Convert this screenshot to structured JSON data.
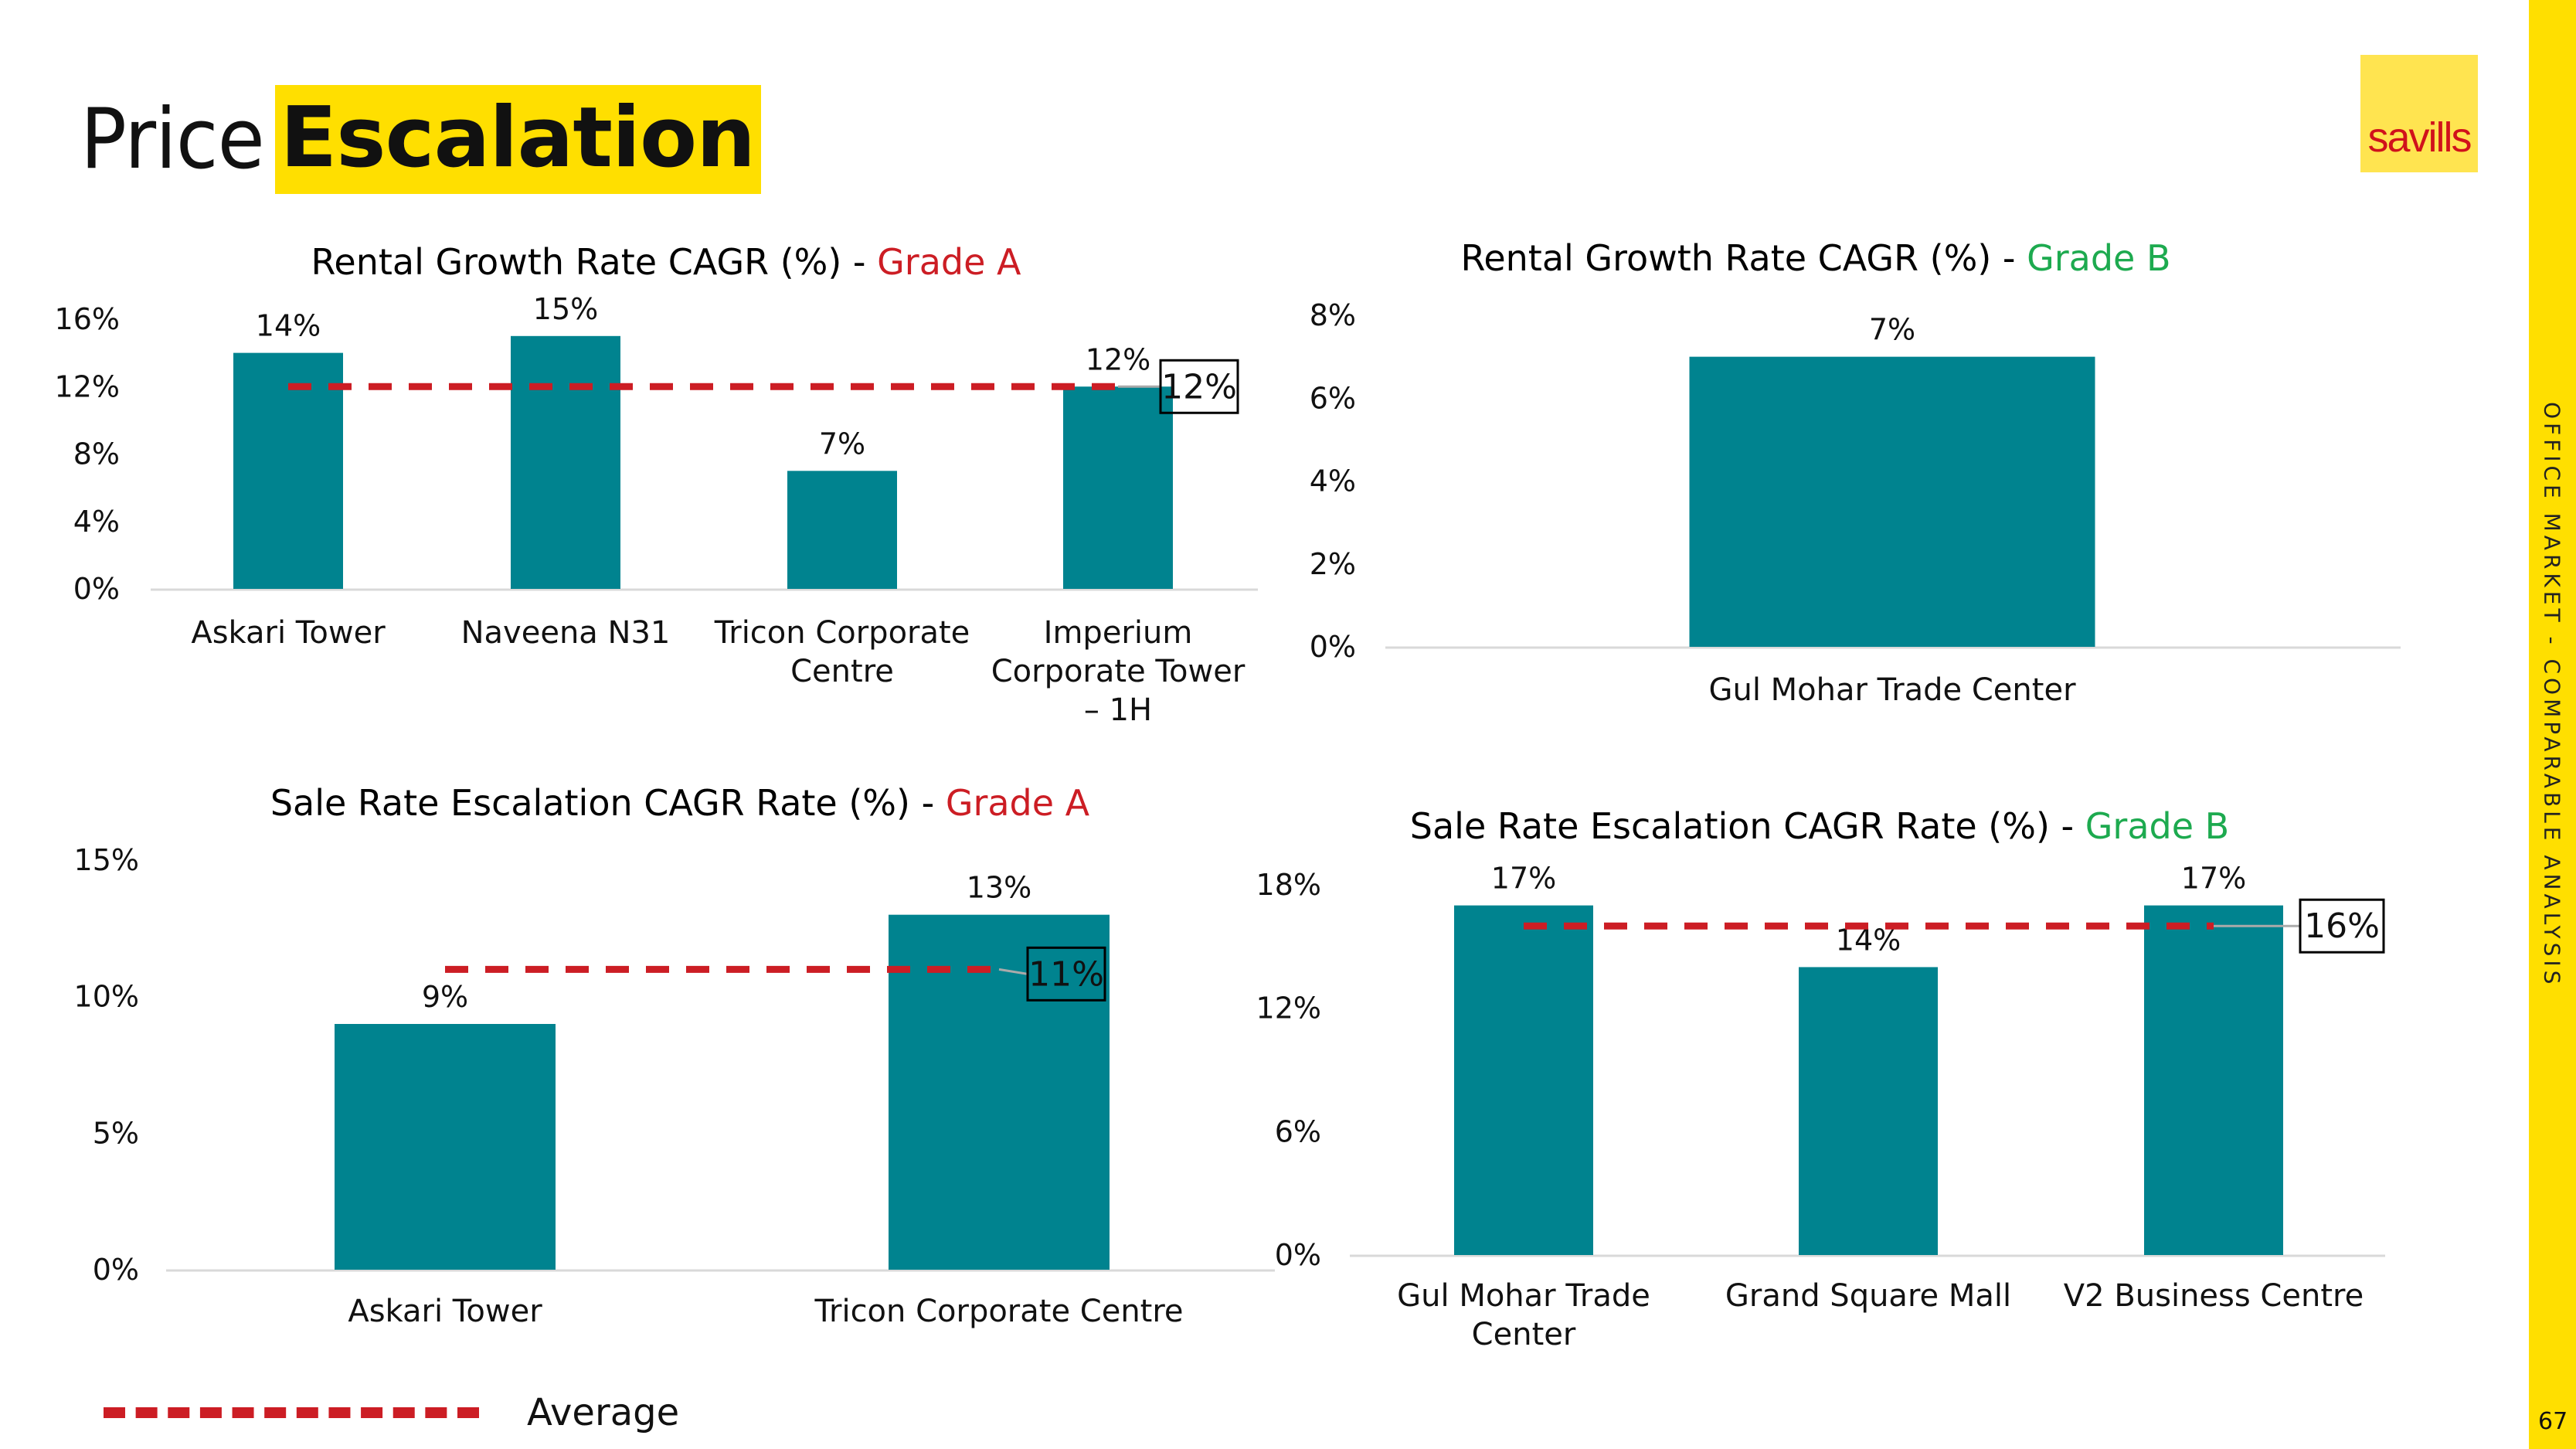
{
  "header": {
    "title_light": "Price",
    "title_highlight": "Escalation",
    "logo_text": "savills"
  },
  "sidebar": {
    "section_label": "OFFICE MARKET - COMPARABLE ANALYSIS",
    "page_number": "67"
  },
  "colors": {
    "bar": "#00838F",
    "average_line": "#CC1D24",
    "grade_a": "#CC1D24",
    "grade_b": "#1DAA4F",
    "highlight_yellow": "#FFDF00",
    "axis": "#D9D9D9"
  },
  "legend": {
    "average_label": "Average"
  },
  "chart_data": [
    {
      "id": "rental-grade-a",
      "type": "bar",
      "title": "Rental Growth Rate CAGR (%) - ",
      "title_grade": "Grade A",
      "categories": [
        [
          "Askari Tower"
        ],
        [
          "Naveena N31"
        ],
        [
          "Tricon Corporate",
          "Centre"
        ],
        [
          "Imperium",
          "Corporate Tower",
          "– 1H"
        ]
      ],
      "values": [
        14,
        15,
        7,
        12
      ],
      "value_labels": [
        "14%",
        "15%",
        "7%",
        "12%"
      ],
      "average": 12,
      "average_label": "12%",
      "yticks": [
        "0%",
        "4%",
        "8%",
        "12%",
        "16%"
      ],
      "ylim": [
        0,
        16
      ],
      "unit": "%"
    },
    {
      "id": "rental-grade-b",
      "type": "bar",
      "title": "Rental Growth Rate CAGR (%) - ",
      "title_grade": "Grade B",
      "categories": [
        [
          "Gul Mohar Trade Center"
        ]
      ],
      "values": [
        7
      ],
      "value_labels": [
        "7%"
      ],
      "yticks": [
        "0%",
        "2%",
        "4%",
        "6%",
        "8%"
      ],
      "ylim": [
        0,
        8
      ],
      "unit": "%"
    },
    {
      "id": "sale-grade-a",
      "type": "bar",
      "title": "Sale Rate Escalation CAGR Rate (%) - ",
      "title_grade": "Grade A",
      "categories": [
        [
          "Askari Tower"
        ],
        [
          "Tricon Corporate Centre"
        ]
      ],
      "values": [
        9,
        13
      ],
      "value_labels": [
        "9%",
        "13%"
      ],
      "average": 11,
      "average_label": "11%",
      "yticks": [
        "0%",
        "5%",
        "10%",
        "15%"
      ],
      "ylim": [
        0,
        15
      ],
      "unit": "%"
    },
    {
      "id": "sale-grade-b",
      "type": "bar",
      "title": "Sale Rate Escalation CAGR Rate (%) - ",
      "title_grade": "Grade B",
      "categories": [
        [
          "Gul Mohar Trade",
          "Center"
        ],
        [
          "Grand Square Mall"
        ],
        [
          "V2 Business Centre"
        ]
      ],
      "values": [
        17,
        14,
        17
      ],
      "value_labels": [
        "17%",
        "14%",
        "17%"
      ],
      "average": 16,
      "average_label": "16%",
      "yticks": [
        "0%",
        "6%",
        "12%",
        "18%"
      ],
      "ylim": [
        0,
        18
      ],
      "unit": "%"
    }
  ]
}
